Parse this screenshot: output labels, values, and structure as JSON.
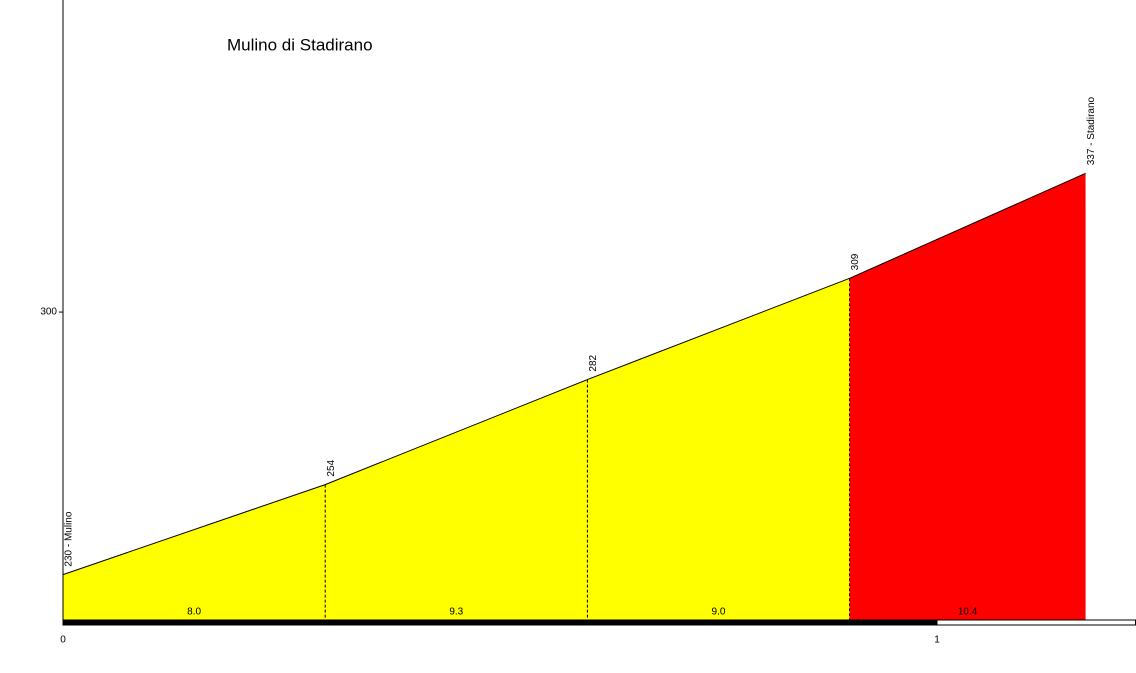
{
  "chart_data": {
    "type": "profile",
    "title": "Mulino di Stadirano",
    "x": [
      0,
      0.3,
      0.6,
      0.9,
      1.17
    ],
    "y": [
      230,
      254,
      282,
      309,
      337
    ],
    "value_labels": [
      "230 - Mulino",
      "254",
      "282",
      "309",
      "337 - Stadirano"
    ],
    "segments": [
      {
        "label": "8.0",
        "color": "#ffff00"
      },
      {
        "label": "9.3",
        "color": "#ffff00"
      },
      {
        "label": "9.0",
        "color": "#ffff00"
      },
      {
        "label": "10.4",
        "color": "#ff0000"
      }
    ],
    "xlim": [
      0,
      1.2277
    ],
    "xticks": [
      0,
      1
    ],
    "ylim": [
      217.9,
      383.2
    ],
    "yticks": [
      300
    ]
  }
}
